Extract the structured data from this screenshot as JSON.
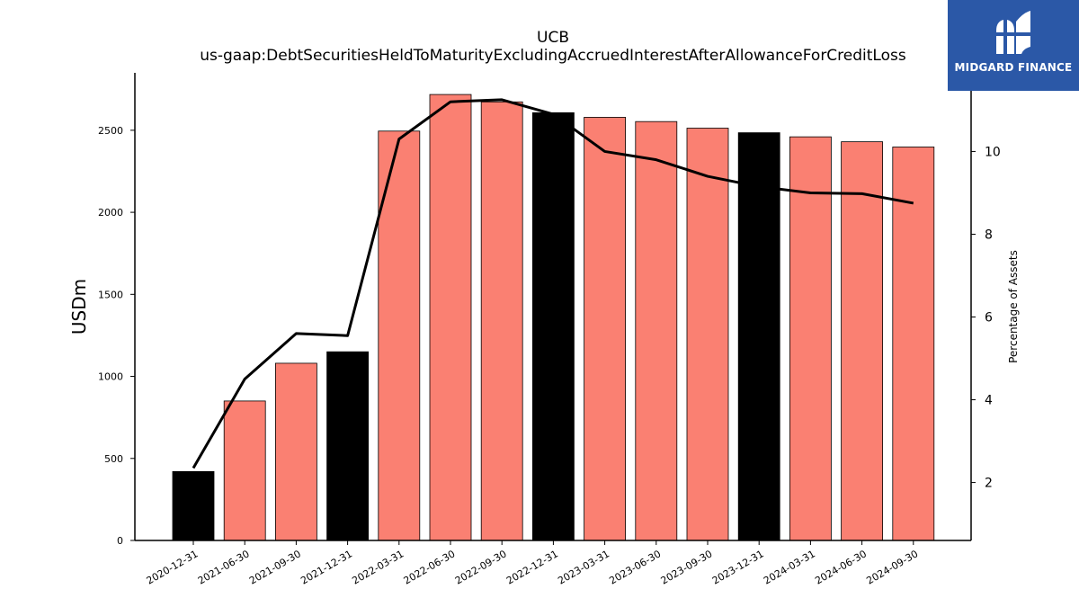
{
  "title": "UCB",
  "subtitle": "us-gaap:DebtSecuritiesHeldToMaturityExcludingAccruedInterestAfterAllowanceForCreditLoss",
  "logo": {
    "text": "MIDGARD FINANCE",
    "color": "#2b58a7"
  },
  "colors": {
    "bar_normal": "#fa8072",
    "bar_year_end": "#000000",
    "line": "#000000"
  },
  "chart_data": {
    "type": "bar",
    "categories": [
      "2020-12-31",
      "2021-06-30",
      "2021-09-30",
      "2021-12-31",
      "2022-03-31",
      "2022-06-30",
      "2022-09-30",
      "2022-12-31",
      "2023-03-31",
      "2023-06-30",
      "2023-09-30",
      "2023-12-31",
      "2024-03-31",
      "2024-06-30",
      "2024-09-30"
    ],
    "series": [
      {
        "axis": "left",
        "type": "bar",
        "values": [
          420,
          850,
          1080,
          1150,
          2495,
          2718,
          2673,
          2607,
          2579,
          2553,
          2513,
          2485,
          2460,
          2430,
          2398
        ],
        "highlight": [
          true,
          false,
          false,
          true,
          false,
          false,
          false,
          true,
          false,
          false,
          false,
          true,
          false,
          false,
          false
        ]
      },
      {
        "axis": "right",
        "type": "line",
        "values": [
          2.35,
          4.5,
          5.6,
          5.55,
          10.3,
          11.2,
          11.25,
          10.9,
          10.0,
          9.8,
          9.4,
          9.15,
          9.0,
          8.98,
          8.75
        ]
      }
    ],
    "ylabel": "USDm",
    "ylabel_right": "Percentage of Assets",
    "ylim": [
      0,
      2850
    ],
    "ylim_right": [
      0.6,
      11.9
    ],
    "yticks": [
      0,
      500,
      1000,
      1500,
      2000,
      2500
    ],
    "yticks_right": [
      2,
      4,
      6,
      8,
      10
    ],
    "grid": false,
    "legend": "none"
  }
}
